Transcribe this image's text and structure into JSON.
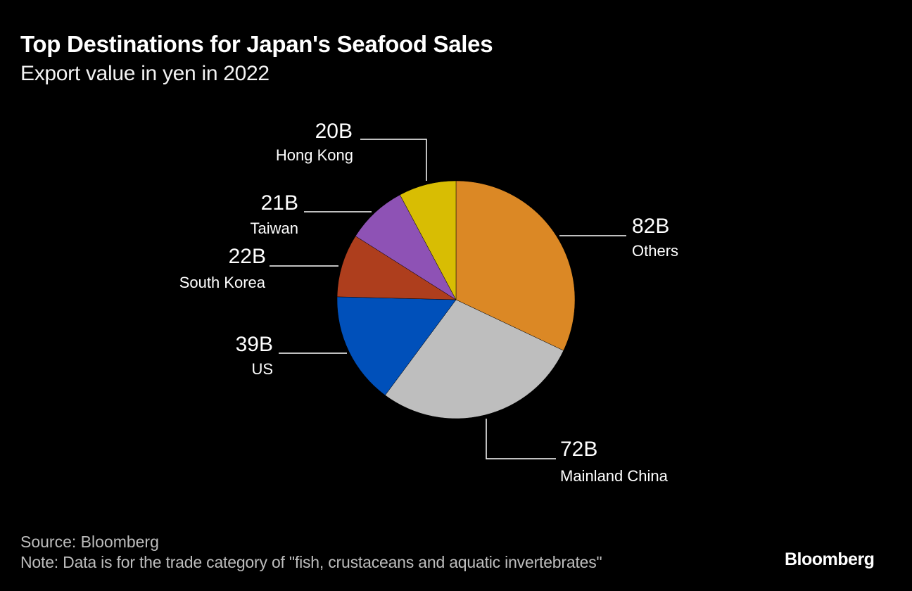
{
  "header": {
    "title": "Top Destinations for Japan's Seafood Sales",
    "subtitle": "Export value in yen in 2022"
  },
  "footer": {
    "source": "Source: Bloomberg",
    "note": "Note: Data is for the trade category of \"fish, crustaceans and aquatic invertebrates\"",
    "logo": "Bloomberg"
  },
  "chart_data": {
    "type": "pie",
    "title": "Top Destinations for Japan's Seafood Sales",
    "subtitle": "Export value in yen in 2022",
    "unit": "yen",
    "slices": [
      {
        "name": "Others",
        "value": 82,
        "label": "82B",
        "color": "#DB8825"
      },
      {
        "name": "Mainland China",
        "value": 72,
        "label": "72B",
        "color": "#BEBEBE"
      },
      {
        "name": "US",
        "value": 39,
        "label": "39B",
        "color": "#0050BA"
      },
      {
        "name": "South Korea",
        "value": 22,
        "label": "22B",
        "color": "#AE3E1D"
      },
      {
        "name": "Taiwan",
        "value": 21,
        "label": "21B",
        "color": "#8E52B5"
      },
      {
        "name": "Hong Kong",
        "value": 20,
        "label": "20B",
        "color": "#D8BD03"
      }
    ],
    "start_angle": "12 o'clock",
    "direction": "clockwise"
  }
}
